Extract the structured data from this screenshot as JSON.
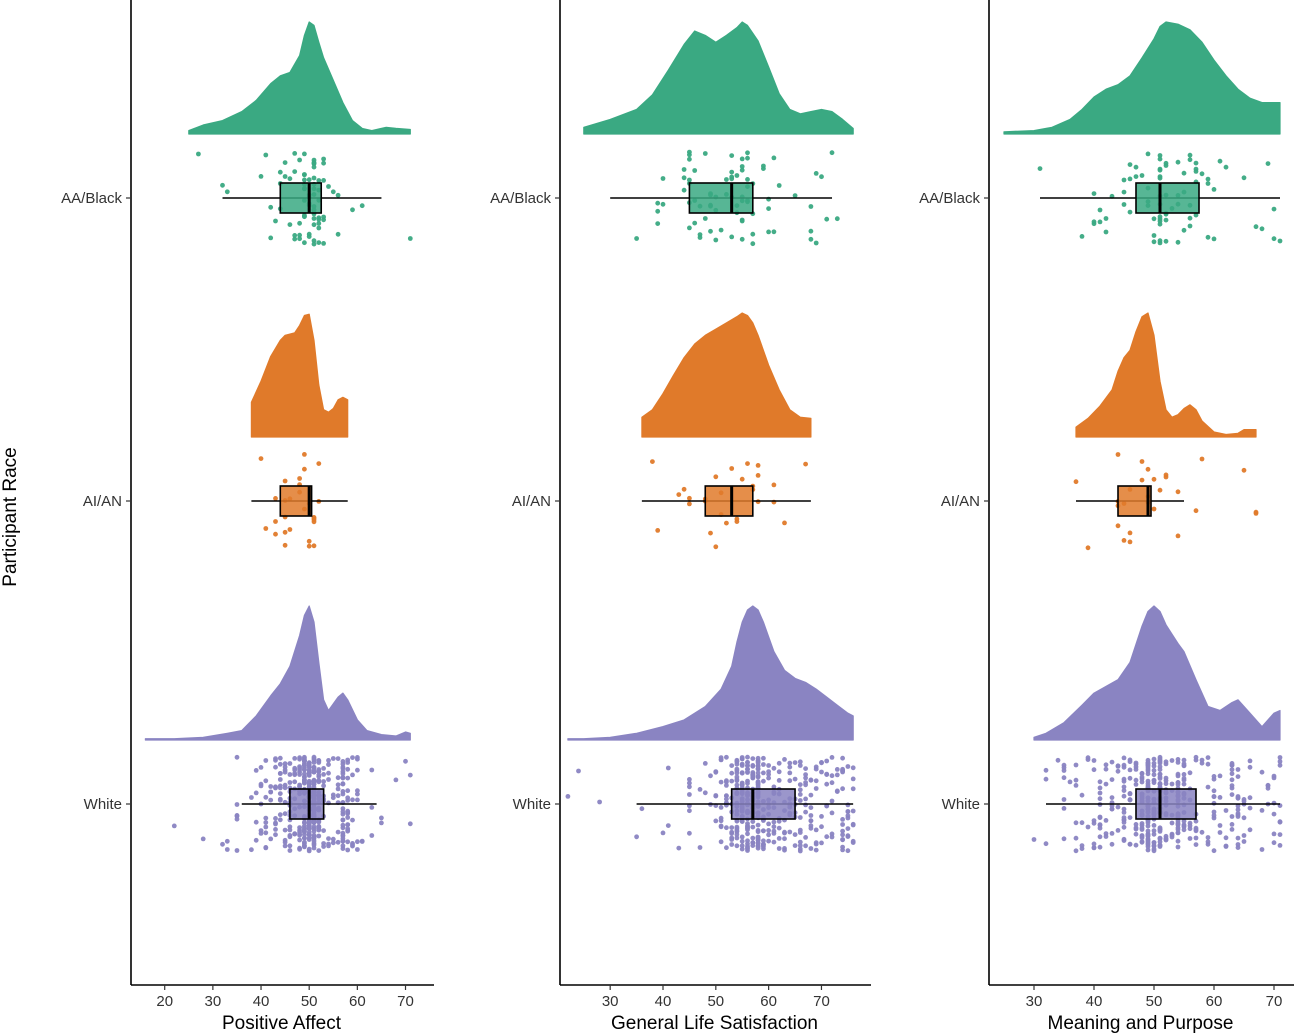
{
  "chart_data": {
    "type": "raincloud",
    "ylabel": "Participant Race",
    "groups": [
      "AA/Black",
      "AI/AN",
      "White"
    ],
    "colors": {
      "AA/Black": "#3aa982",
      "AI/AN": "#e07a2a",
      "White": "#8a84c2"
    },
    "xticks": [
      20,
      30,
      40,
      50,
      60,
      70
    ],
    "panels": [
      {
        "xlabel": "Positive Affect",
        "xlim": [
          13.0,
          75.5
        ],
        "series": [
          {
            "group": "AA/Black",
            "box": {
              "whisker_low": 32,
              "q1": 44,
              "median": 50,
              "q3": 52.5,
              "whisker_high": 65
            },
            "density": [
              [
                25,
                0.03
              ],
              [
                28,
                0.08
              ],
              [
                32,
                0.12
              ],
              [
                36,
                0.2
              ],
              [
                39,
                0.3
              ],
              [
                42,
                0.45
              ],
              [
                44,
                0.52
              ],
              [
                46,
                0.55
              ],
              [
                48,
                0.7
              ],
              [
                49,
                0.88
              ],
              [
                50,
                1.0
              ],
              [
                51,
                0.97
              ],
              [
                52,
                0.82
              ],
              [
                53,
                0.68
              ],
              [
                55,
                0.48
              ],
              [
                57,
                0.28
              ],
              [
                59,
                0.12
              ],
              [
                61,
                0.05
              ],
              [
                63,
                0.03
              ],
              [
                66,
                0.06
              ],
              [
                68,
                0.05
              ],
              [
                71,
                0.04
              ]
            ],
            "density_range": [
              25,
              71
            ]
          },
          {
            "group": "AI/AN",
            "box": {
              "whisker_low": 38,
              "q1": 44,
              "median": 50,
              "q3": 50.5,
              "whisker_high": 58
            },
            "density": [
              [
                38,
                0.28
              ],
              [
                40,
                0.45
              ],
              [
                42,
                0.65
              ],
              [
                44,
                0.78
              ],
              [
                45,
                0.82
              ],
              [
                46,
                0.83
              ],
              [
                47,
                0.84
              ],
              [
                48,
                0.9
              ],
              [
                49,
                0.98
              ],
              [
                50,
                0.99
              ],
              [
                51,
                0.78
              ],
              [
                52,
                0.42
              ],
              [
                53,
                0.22
              ],
              [
                54,
                0.2
              ],
              [
                55,
                0.23
              ],
              [
                56,
                0.3
              ],
              [
                57,
                0.32
              ],
              [
                58,
                0.3
              ]
            ],
            "density_range": [
              38,
              58
            ]
          },
          {
            "group": "White",
            "box": {
              "whisker_low": 36,
              "q1": 46,
              "median": 50,
              "q3": 53,
              "whisker_high": 64
            },
            "density": [
              [
                16,
                0.01
              ],
              [
                22,
                0.01
              ],
              [
                28,
                0.02
              ],
              [
                33,
                0.05
              ],
              [
                36,
                0.07
              ],
              [
                39,
                0.18
              ],
              [
                42,
                0.33
              ],
              [
                44,
                0.42
              ],
              [
                46,
                0.55
              ],
              [
                48,
                0.78
              ],
              [
                49,
                0.93
              ],
              [
                50,
                1.0
              ],
              [
                51,
                0.88
              ],
              [
                52,
                0.58
              ],
              [
                53,
                0.3
              ],
              [
                54,
                0.22
              ],
              [
                56,
                0.32
              ],
              [
                57,
                0.35
              ],
              [
                58,
                0.3
              ],
              [
                60,
                0.15
              ],
              [
                62,
                0.07
              ],
              [
                65,
                0.04
              ],
              [
                68,
                0.03
              ],
              [
                70,
                0.06
              ],
              [
                71,
                0.05
              ]
            ],
            "density_range": [
              16,
              71
            ]
          }
        ]
      },
      {
        "xlabel": "General Life Satisfaction",
        "xlim": [
          20.5,
          79.0
        ],
        "series": [
          {
            "group": "AA/Black",
            "box": {
              "whisker_low": 30,
              "q1": 45,
              "median": 53,
              "q3": 57,
              "whisker_high": 72
            },
            "density": [
              [
                25,
                0.06
              ],
              [
                30,
                0.13
              ],
              [
                35,
                0.22
              ],
              [
                38,
                0.35
              ],
              [
                41,
                0.57
              ],
              [
                44,
                0.8
              ],
              [
                46,
                0.92
              ],
              [
                48,
                0.88
              ],
              [
                50,
                0.82
              ],
              [
                52,
                0.88
              ],
              [
                54,
                0.95
              ],
              [
                55,
                1.0
              ],
              [
                56,
                0.97
              ],
              [
                58,
                0.83
              ],
              [
                60,
                0.6
              ],
              [
                62,
                0.36
              ],
              [
                64,
                0.22
              ],
              [
                66,
                0.18
              ],
              [
                68,
                0.2
              ],
              [
                70,
                0.22
              ],
              [
                72,
                0.2
              ],
              [
                74,
                0.13
              ],
              [
                76,
                0.05
              ]
            ],
            "density_range": [
              25,
              76
            ]
          },
          {
            "group": "AI/AN",
            "box": {
              "whisker_low": 36,
              "q1": 48,
              "median": 53,
              "q3": 57,
              "whisker_high": 68
            },
            "density": [
              [
                36,
                0.16
              ],
              [
                38,
                0.22
              ],
              [
                40,
                0.35
              ],
              [
                42,
                0.5
              ],
              [
                44,
                0.64
              ],
              [
                46,
                0.75
              ],
              [
                48,
                0.82
              ],
              [
                50,
                0.87
              ],
              [
                52,
                0.92
              ],
              [
                54,
                0.97
              ],
              [
                55,
                1.0
              ],
              [
                56,
                0.98
              ],
              [
                57,
                0.92
              ],
              [
                58,
                0.82
              ],
              [
                60,
                0.58
              ],
              [
                62,
                0.38
              ],
              [
                64,
                0.22
              ],
              [
                66,
                0.16
              ],
              [
                68,
                0.15
              ]
            ],
            "density_range": [
              36,
              68
            ]
          },
          {
            "group": "White",
            "box": {
              "whisker_low": 35,
              "q1": 53,
              "median": 57,
              "q3": 65,
              "whisker_high": 76
            },
            "density": [
              [
                22,
                0.01
              ],
              [
                25,
                0.01
              ],
              [
                30,
                0.02
              ],
              [
                35,
                0.05
              ],
              [
                40,
                0.1
              ],
              [
                44,
                0.15
              ],
              [
                48,
                0.25
              ],
              [
                51,
                0.38
              ],
              [
                53,
                0.55
              ],
              [
                54,
                0.73
              ],
              [
                55,
                0.88
              ],
              [
                56,
                0.97
              ],
              [
                57,
                1.0
              ],
              [
                58,
                0.97
              ],
              [
                59,
                0.88
              ],
              [
                61,
                0.66
              ],
              [
                63,
                0.52
              ],
              [
                65,
                0.46
              ],
              [
                67,
                0.43
              ],
              [
                69,
                0.38
              ],
              [
                71,
                0.32
              ],
              [
                73,
                0.26
              ],
              [
                75,
                0.2
              ],
              [
                76,
                0.18
              ]
            ],
            "density_range": [
              22,
              76
            ]
          }
        ]
      },
      {
        "xlabel": "Meaning and Purpose",
        "xlim": [
          22.5,
          73.0
        ],
        "series": [
          {
            "group": "AA/Black",
            "box": {
              "whisker_low": 31,
              "q1": 47,
              "median": 51,
              "q3": 57.5,
              "whisker_high": 71
            },
            "density": [
              [
                25,
                0.02
              ],
              [
                30,
                0.03
              ],
              [
                33,
                0.06
              ],
              [
                36,
                0.13
              ],
              [
                38,
                0.22
              ],
              [
                40,
                0.33
              ],
              [
                42,
                0.4
              ],
              [
                44,
                0.44
              ],
              [
                46,
                0.52
              ],
              [
                48,
                0.68
              ],
              [
                50,
                0.85
              ],
              [
                51,
                0.96
              ],
              [
                52,
                1.0
              ],
              [
                54,
                0.98
              ],
              [
                56,
                0.93
              ],
              [
                58,
                0.82
              ],
              [
                60,
                0.66
              ],
              [
                62,
                0.52
              ],
              [
                64,
                0.4
              ],
              [
                66,
                0.32
              ],
              [
                68,
                0.28
              ],
              [
                70,
                0.28
              ],
              [
                71,
                0.28
              ]
            ],
            "density_range": [
              25,
              71
            ]
          },
          {
            "group": "AI/AN",
            "box": {
              "whisker_low": 37,
              "q1": 44,
              "median": 49,
              "q3": 49.5,
              "whisker_high": 55
            },
            "density": [
              [
                37,
                0.08
              ],
              [
                39,
                0.15
              ],
              [
                41,
                0.25
              ],
              [
                43,
                0.38
              ],
              [
                44,
                0.53
              ],
              [
                45,
                0.64
              ],
              [
                46,
                0.7
              ],
              [
                47,
                0.85
              ],
              [
                48,
                0.97
              ],
              [
                49,
                1.0
              ],
              [
                50,
                0.82
              ],
              [
                51,
                0.45
              ],
              [
                52,
                0.22
              ],
              [
                53,
                0.16
              ],
              [
                54,
                0.18
              ],
              [
                55,
                0.23
              ],
              [
                56,
                0.26
              ],
              [
                57,
                0.22
              ],
              [
                58,
                0.13
              ],
              [
                60,
                0.04
              ],
              [
                62,
                0.02
              ],
              [
                64,
                0.03
              ],
              [
                65,
                0.06
              ],
              [
                67,
                0.06
              ]
            ],
            "density_range": [
              37,
              67
            ]
          },
          {
            "group": "White",
            "box": {
              "whisker_low": 32,
              "q1": 47,
              "median": 51,
              "q3": 57,
              "whisker_high": 71
            },
            "density": [
              [
                30,
                0.02
              ],
              [
                32,
                0.05
              ],
              [
                35,
                0.13
              ],
              [
                38,
                0.26
              ],
              [
                40,
                0.35
              ],
              [
                42,
                0.4
              ],
              [
                44,
                0.45
              ],
              [
                46,
                0.58
              ],
              [
                48,
                0.85
              ],
              [
                49,
                0.96
              ],
              [
                50,
                1.0
              ],
              [
                51,
                0.96
              ],
              [
                52,
                0.86
              ],
              [
                54,
                0.72
              ],
              [
                55,
                0.66
              ],
              [
                57,
                0.45
              ],
              [
                59,
                0.25
              ],
              [
                61,
                0.22
              ],
              [
                63,
                0.28
              ],
              [
                64,
                0.3
              ],
              [
                66,
                0.2
              ],
              [
                68,
                0.1
              ],
              [
                70,
                0.2
              ],
              [
                71,
                0.22
              ]
            ],
            "density_range": [
              30,
              71
            ]
          }
        ]
      }
    ]
  }
}
